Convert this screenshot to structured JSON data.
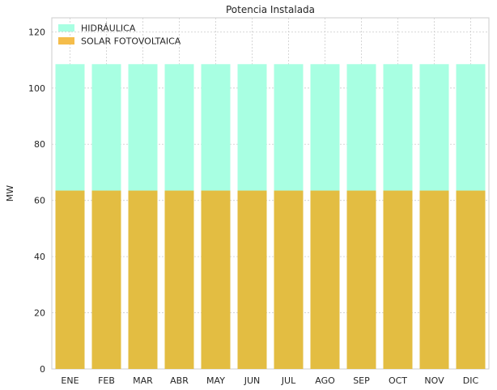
{
  "chart_data": {
    "type": "bar",
    "stacked": true,
    "title": "Potencia Instalada",
    "xlabel": "",
    "ylabel": "MW",
    "categories": [
      "ENE",
      "FEB",
      "MAR",
      "ABR",
      "MAY",
      "JUN",
      "JUL",
      "AGO",
      "SEP",
      "OCT",
      "NOV",
      "DIC"
    ],
    "series": [
      {
        "name": "SOLAR FOTOVOLTAICA",
        "values": [
          63.5,
          63.5,
          63.5,
          63.5,
          63.5,
          63.5,
          63.5,
          63.5,
          63.5,
          63.5,
          63.5,
          63.5
        ],
        "color": "#e3bd42"
      },
      {
        "name": "HIDRÁULICA",
        "values": [
          45,
          45,
          45,
          45,
          45,
          45,
          45,
          45,
          45,
          45,
          45,
          45
        ],
        "color": "#a8ffe2"
      }
    ],
    "legend_order": [
      "HIDRÁULICA",
      "SOLAR FOTOVOLTAICA"
    ],
    "legend_colors": {
      "HIDRÁULICA": "#a8ffe2",
      "SOLAR FOTOVOLTAICA": "#f5bd4b"
    },
    "ylim": [
      0,
      125
    ],
    "yticks": [
      0,
      20,
      40,
      60,
      80,
      100,
      120
    ],
    "grid": true,
    "legend_position": "top-left"
  }
}
